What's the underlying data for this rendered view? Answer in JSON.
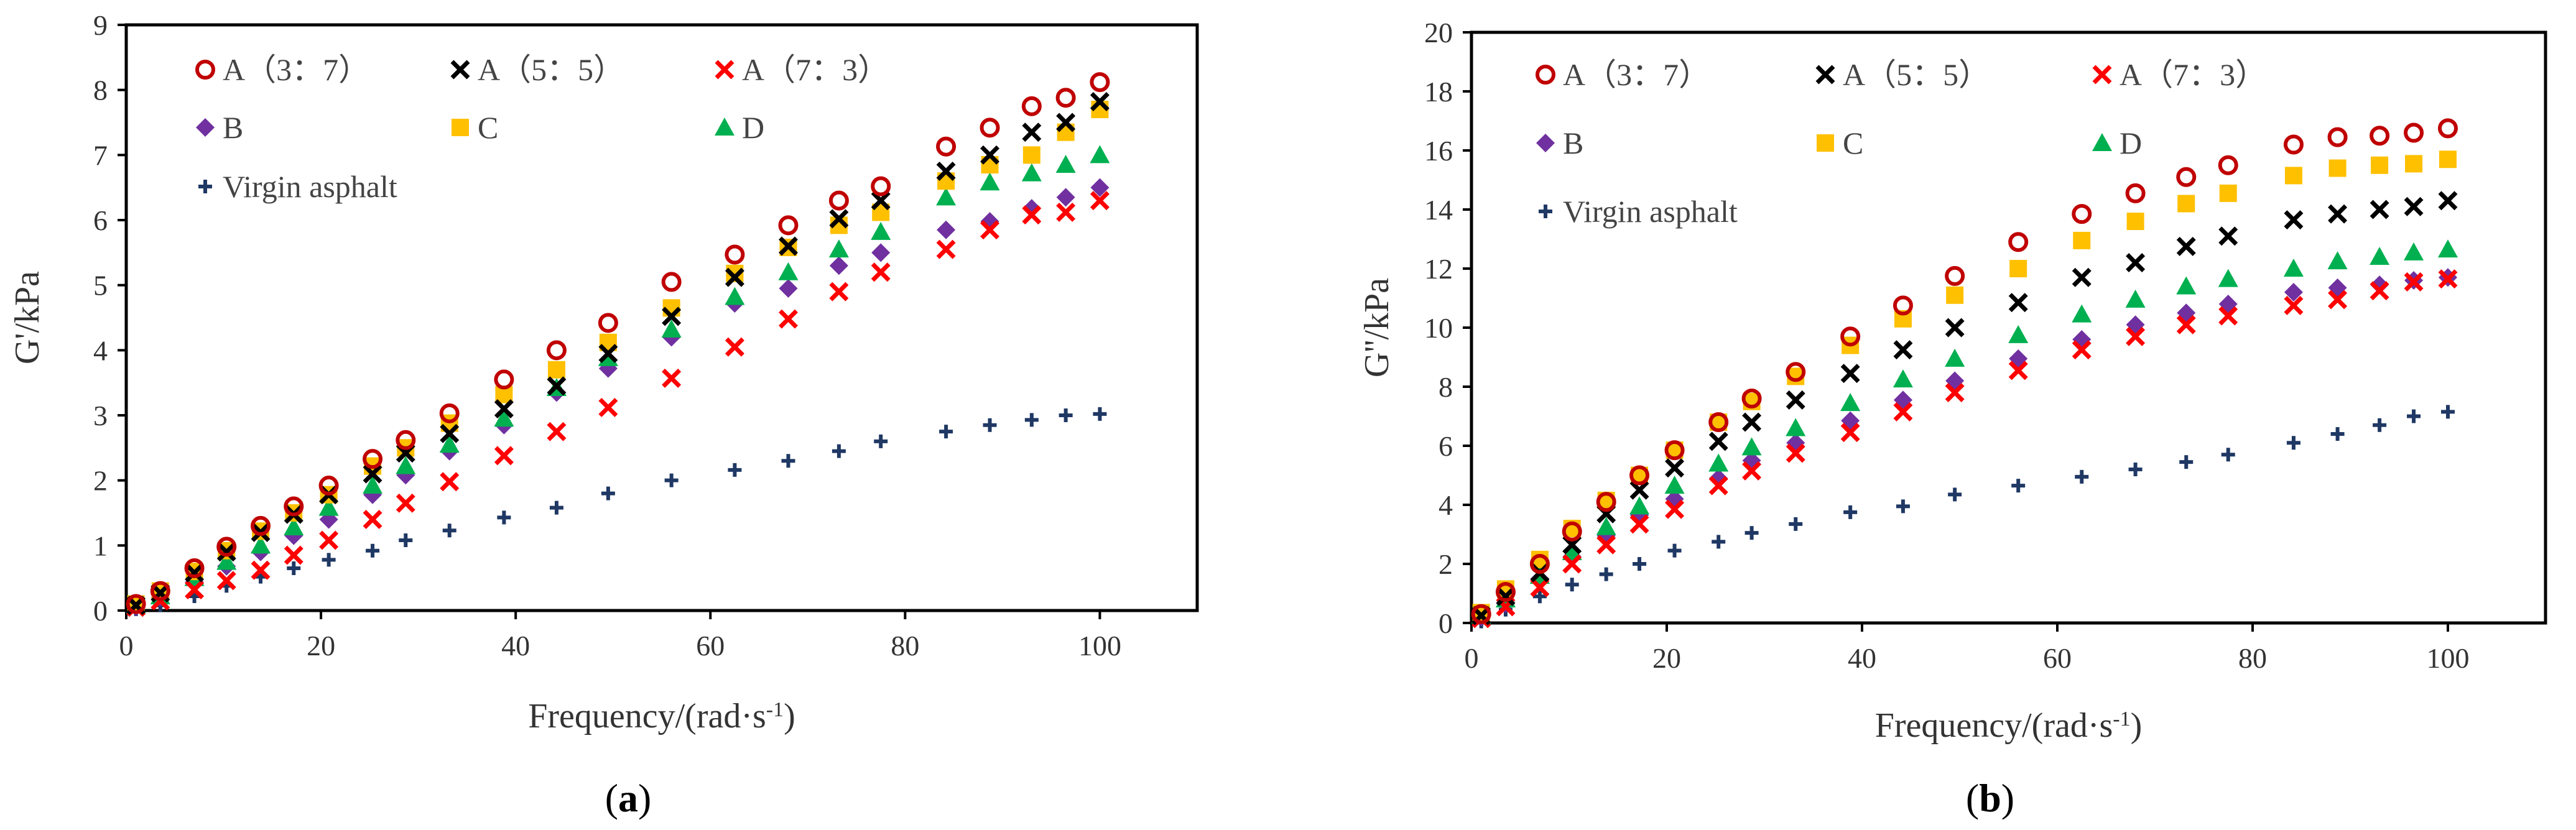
{
  "figure": {
    "background": "#ffffff"
  },
  "series_styles": {
    "A (3:7)": {
      "marker": "circle-open",
      "color": "#c00000"
    },
    "A (5:5)": {
      "marker": "x",
      "color": "#000000"
    },
    "A (7:3)": {
      "marker": "x",
      "color": "#ff0000"
    },
    "B": {
      "marker": "diamond",
      "color": "#7030a0"
    },
    "C": {
      "marker": "square",
      "color": "#ffc000"
    },
    "D": {
      "marker": "triangle",
      "color": "#00b050"
    },
    "Virgin asphalt": {
      "marker": "plus",
      "color": "#1f3864"
    }
  },
  "chart_data": [
    {
      "panel": "(a)",
      "panel_letter": "a",
      "type": "scatter",
      "title": "",
      "xlabel": "Frequency/(rad·s-1)",
      "ylabel": "G'/kPa",
      "xlim": [
        0,
        110
      ],
      "ylim": [
        0,
        9
      ],
      "xticks": [
        0,
        20,
        40,
        60,
        80,
        100
      ],
      "yticks": [
        0,
        1,
        2,
        3,
        4,
        5,
        6,
        7,
        8,
        9
      ],
      "grid": false,
      "legend": [
        "A（3：7）",
        "A（5：5）",
        "A（7：3）",
        "B",
        "C",
        "D",
        "Virgin asphalt"
      ],
      "legend_location": "top-left",
      "x": [
        1,
        3.5,
        7,
        10.3,
        13.8,
        17.2,
        20.8,
        25.3,
        28.7,
        33.2,
        38.8,
        44.2,
        49.5,
        56,
        62.5,
        68,
        73.2,
        77.5,
        84.2,
        88.7,
        93,
        96.5,
        100
      ],
      "series": [
        {
          "name": "A (3:7)",
          "values": [
            0.1,
            0.3,
            0.65,
            0.98,
            1.3,
            1.6,
            1.92,
            2.33,
            2.62,
            3.03,
            3.55,
            4.0,
            4.42,
            5.05,
            5.47,
            5.92,
            6.3,
            6.52,
            7.13,
            7.42,
            7.75,
            7.88,
            8.12
          ]
        },
        {
          "name": "A (5:5)",
          "values": [
            0.08,
            0.27,
            0.58,
            0.9,
            1.2,
            1.48,
            1.78,
            2.1,
            2.42,
            2.72,
            3.1,
            3.45,
            3.95,
            4.52,
            5.12,
            5.6,
            6.02,
            6.3,
            6.75,
            7.0,
            7.35,
            7.5,
            7.82
          ]
        },
        {
          "name": "A (7:3)",
          "values": [
            0.05,
            0.15,
            0.32,
            0.46,
            0.62,
            0.85,
            1.08,
            1.4,
            1.65,
            1.98,
            2.38,
            2.75,
            3.12,
            3.57,
            4.05,
            4.48,
            4.9,
            5.2,
            5.55,
            5.85,
            6.08,
            6.12,
            6.3
          ]
        },
        {
          "name": "B",
          "values": [
            0.06,
            0.2,
            0.44,
            0.68,
            0.9,
            1.15,
            1.4,
            1.78,
            2.08,
            2.45,
            2.85,
            3.35,
            3.72,
            4.2,
            4.72,
            4.95,
            5.3,
            5.5,
            5.85,
            5.98,
            6.18,
            6.35,
            6.5
          ]
        },
        {
          "name": "C",
          "values": [
            0.1,
            0.3,
            0.6,
            0.92,
            1.22,
            1.5,
            1.78,
            2.22,
            2.5,
            2.88,
            3.32,
            3.7,
            4.12,
            4.65,
            5.18,
            5.58,
            5.92,
            6.12,
            6.6,
            6.85,
            7.0,
            7.35,
            7.7
          ]
        },
        {
          "name": "D",
          "values": [
            0.08,
            0.22,
            0.5,
            0.75,
            1.0,
            1.28,
            1.58,
            1.92,
            2.22,
            2.55,
            2.95,
            3.42,
            3.88,
            4.32,
            4.82,
            5.2,
            5.55,
            5.82,
            6.35,
            6.58,
            6.72,
            6.85,
            7.0
          ]
        },
        {
          "name": "Virgin asphalt",
          "values": [
            0.02,
            0.08,
            0.22,
            0.38,
            0.52,
            0.65,
            0.78,
            0.92,
            1.08,
            1.23,
            1.43,
            1.58,
            1.8,
            2.0,
            2.16,
            2.3,
            2.45,
            2.6,
            2.75,
            2.85,
            2.93,
            3.0,
            3.02
          ]
        }
      ]
    },
    {
      "panel": "(b)",
      "panel_letter": "b",
      "type": "scatter",
      "title": "",
      "xlabel": "Frequency/(rad·s-1)",
      "ylabel": "G''/kPa",
      "xlim": [
        0,
        110
      ],
      "ylim": [
        0,
        20
      ],
      "xticks": [
        0,
        20,
        40,
        60,
        80,
        100
      ],
      "yticks": [
        0,
        2,
        4,
        6,
        8,
        10,
        12,
        14,
        16,
        18,
        20
      ],
      "grid": false,
      "legend": [
        "A（3：7）",
        "A（5：5）",
        "A（7：3）",
        "B",
        "C",
        "D",
        "Virgin asphalt"
      ],
      "legend_location": "top-left",
      "x": [
        1,
        3.5,
        7,
        10.3,
        13.8,
        17.2,
        20.8,
        25.3,
        28.7,
        33.2,
        38.8,
        44.2,
        49.5,
        56,
        62.5,
        68,
        73.2,
        77.5,
        84.2,
        88.7,
        93,
        96.5,
        100
      ],
      "series": [
        {
          "name": "A (3:7)",
          "values": [
            0.3,
            1.05,
            2.0,
            3.1,
            4.1,
            5.0,
            5.85,
            6.8,
            7.6,
            8.5,
            9.7,
            10.75,
            11.75,
            12.9,
            13.85,
            14.55,
            15.1,
            15.5,
            16.2,
            16.45,
            16.5,
            16.6,
            16.75
          ]
        },
        {
          "name": "A (5:5)",
          "values": [
            0.25,
            0.9,
            1.7,
            2.65,
            3.7,
            4.5,
            5.25,
            6.15,
            6.8,
            7.55,
            8.45,
            9.25,
            10.0,
            10.85,
            11.7,
            12.2,
            12.75,
            13.1,
            13.65,
            13.85,
            14.0,
            14.1,
            14.3
          ]
        },
        {
          "name": "A (7:3)",
          "values": [
            0.15,
            0.55,
            1.2,
            2.0,
            2.65,
            3.35,
            3.85,
            4.65,
            5.15,
            5.75,
            6.45,
            7.15,
            7.8,
            8.55,
            9.25,
            9.7,
            10.1,
            10.4,
            10.75,
            10.95,
            11.25,
            11.55,
            11.65
          ]
        },
        {
          "name": "B",
          "values": [
            0.2,
            0.65,
            1.5,
            2.25,
            2.95,
            3.65,
            4.2,
            4.9,
            5.5,
            6.1,
            6.85,
            7.55,
            8.2,
            8.95,
            9.6,
            10.1,
            10.5,
            10.8,
            11.2,
            11.35,
            11.45,
            11.6,
            11.7
          ]
        },
        {
          "name": "C",
          "values": [
            0.35,
            1.15,
            2.15,
            3.2,
            4.15,
            5.0,
            5.85,
            6.8,
            7.5,
            8.35,
            9.4,
            10.3,
            11.1,
            12.0,
            12.95,
            13.6,
            14.2,
            14.55,
            15.15,
            15.4,
            15.5,
            15.55,
            15.7
          ]
        },
        {
          "name": "D",
          "values": [
            0.25,
            0.8,
            1.6,
            2.4,
            3.25,
            3.95,
            4.65,
            5.4,
            5.95,
            6.6,
            7.45,
            8.25,
            8.95,
            9.75,
            10.45,
            10.95,
            11.4,
            11.65,
            12.0,
            12.25,
            12.4,
            12.55,
            12.65
          ]
        },
        {
          "name": "Virgin asphalt",
          "values": [
            0.05,
            0.45,
            0.9,
            1.3,
            1.65,
            2.0,
            2.45,
            2.75,
            3.05,
            3.35,
            3.75,
            3.95,
            4.35,
            4.65,
            4.95,
            5.2,
            5.45,
            5.7,
            6.1,
            6.4,
            6.7,
            7.0,
            7.15
          ]
        }
      ]
    }
  ]
}
